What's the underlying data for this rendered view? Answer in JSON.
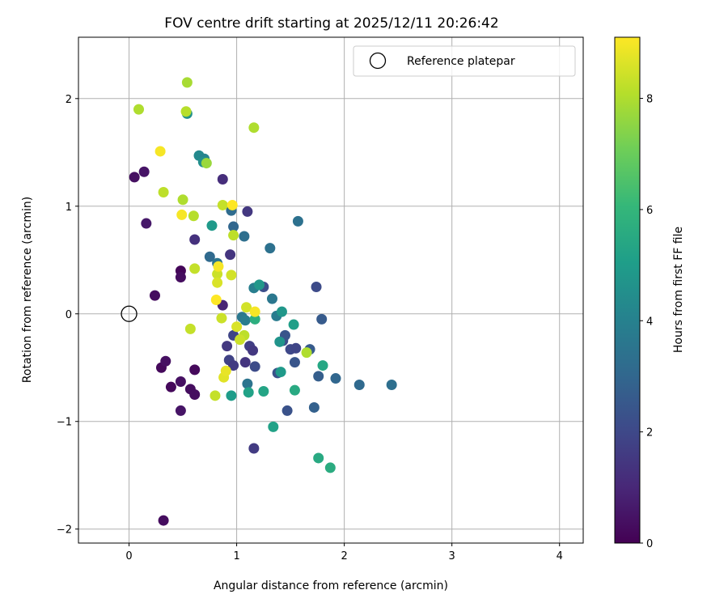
{
  "chart_data": {
    "type": "scatter",
    "title": "FOV centre drift starting at 2025/12/11 20:26:42",
    "xlabel": "Angular distance from reference (arcmin)",
    "ylabel": "Rotation from reference (arcmin)",
    "xlim": [
      -0.47,
      4.22
    ],
    "ylim": [
      -2.13,
      2.57
    ],
    "x_ticks": [
      0,
      1,
      2,
      3,
      4
    ],
    "x_tick_labels": [
      "0",
      "1",
      "2",
      "3",
      "4"
    ],
    "y_ticks": [
      -2,
      -1,
      0,
      1,
      2
    ],
    "y_tick_labels": [
      "−2",
      "−1",
      "0",
      "1",
      "2"
    ],
    "grid": true,
    "legend": {
      "position": "top-right",
      "entries": [
        "Reference platepar"
      ]
    },
    "reference_point": {
      "x": 0,
      "y": 0,
      "label": "Reference platepar"
    },
    "colorbar": {
      "label": "Hours from first FF file",
      "range": [
        0,
        9.1
      ],
      "ticks": [
        0,
        2,
        4,
        6,
        8
      ],
      "tick_labels": [
        "0",
        "2",
        "4",
        "6",
        "8"
      ],
      "colormap": [
        "#440154",
        "#482878",
        "#3e4989",
        "#31688e",
        "#26828e",
        "#1f9e89",
        "#35b779",
        "#6ece58",
        "#b5de2b",
        "#fde725"
      ]
    },
    "points": [
      {
        "x": 0.05,
        "y": 1.27,
        "h": 0.4
      },
      {
        "x": 0.14,
        "y": 1.32,
        "h": 0.5
      },
      {
        "x": 0.16,
        "y": 0.84,
        "h": 0.6
      },
      {
        "x": 0.24,
        "y": 0.17,
        "h": 0.3
      },
      {
        "x": 0.3,
        "y": -0.5,
        "h": 0.2
      },
      {
        "x": 0.34,
        "y": -0.44,
        "h": 0.4
      },
      {
        "x": 0.39,
        "y": -0.68,
        "h": 0.2
      },
      {
        "x": 0.32,
        "y": -1.92,
        "h": 0.3
      },
      {
        "x": 0.48,
        "y": 0.4,
        "h": 0.1
      },
      {
        "x": 0.48,
        "y": 0.34,
        "h": 0.3
      },
      {
        "x": 0.48,
        "y": -0.63,
        "h": 0.4
      },
      {
        "x": 0.48,
        "y": -0.9,
        "h": 0.5
      },
      {
        "x": 0.57,
        "y": -0.7,
        "h": 0.3
      },
      {
        "x": 0.61,
        "y": -0.52,
        "h": 0.2
      },
      {
        "x": 0.61,
        "y": -0.75,
        "h": 0.3
      },
      {
        "x": 0.61,
        "y": 0.69,
        "h": 1.3
      },
      {
        "x": 0.87,
        "y": 1.25,
        "h": 1.2
      },
      {
        "x": 0.87,
        "y": 0.08,
        "h": 0.9
      },
      {
        "x": 0.91,
        "y": -0.3,
        "h": 1.5
      },
      {
        "x": 0.93,
        "y": -0.43,
        "h": 1.8
      },
      {
        "x": 0.94,
        "y": 0.55,
        "h": 1.4
      },
      {
        "x": 0.97,
        "y": -0.48,
        "h": 1.6
      },
      {
        "x": 0.97,
        "y": -0.2,
        "h": 1.9
      },
      {
        "x": 1.1,
        "y": 0.95,
        "h": 1.5
      },
      {
        "x": 1.08,
        "y": -0.45,
        "h": 1.4
      },
      {
        "x": 1.12,
        "y": -0.3,
        "h": 1.7
      },
      {
        "x": 1.15,
        "y": -0.34,
        "h": 1.5
      },
      {
        "x": 1.17,
        "y": -0.49,
        "h": 2.1
      },
      {
        "x": 1.16,
        "y": -1.25,
        "h": 1.6
      },
      {
        "x": 1.25,
        "y": 0.25,
        "h": 2.2
      },
      {
        "x": 1.38,
        "y": -0.55,
        "h": 2.3
      },
      {
        "x": 1.43,
        "y": -0.25,
        "h": 2.1
      },
      {
        "x": 1.45,
        "y": -0.2,
        "h": 2.4
      },
      {
        "x": 1.47,
        "y": -0.9,
        "h": 2.3
      },
      {
        "x": 1.5,
        "y": -0.33,
        "h": 2.0
      },
      {
        "x": 1.54,
        "y": -0.45,
        "h": 2.4
      },
      {
        "x": 1.55,
        "y": -0.32,
        "h": 1.9
      },
      {
        "x": 1.68,
        "y": -0.33,
        "h": 2.6
      },
      {
        "x": 1.74,
        "y": 0.25,
        "h": 2.1
      },
      {
        "x": 1.76,
        "y": -0.58,
        "h": 2.7
      },
      {
        "x": 1.79,
        "y": -0.05,
        "h": 2.6
      },
      {
        "x": 1.72,
        "y": -0.87,
        "h": 2.8
      },
      {
        "x": 1.92,
        "y": -0.6,
        "h": 3.0
      },
      {
        "x": 2.14,
        "y": -0.66,
        "h": 3.1
      },
      {
        "x": 2.44,
        "y": -0.66,
        "h": 3.3
      },
      {
        "x": 0.95,
        "y": 0.96,
        "h": 3.2
      },
      {
        "x": 0.97,
        "y": 0.81,
        "h": 3.0
      },
      {
        "x": 1.07,
        "y": 0.72,
        "h": 3.3
      },
      {
        "x": 0.75,
        "y": 0.53,
        "h": 3.1
      },
      {
        "x": 0.82,
        "y": 0.47,
        "h": 3.5
      },
      {
        "x": 1.31,
        "y": 0.61,
        "h": 3.4
      },
      {
        "x": 1.57,
        "y": 0.86,
        "h": 3.4
      },
      {
        "x": 1.16,
        "y": 0.24,
        "h": 3.9
      },
      {
        "x": 1.33,
        "y": 0.14,
        "h": 3.6
      },
      {
        "x": 1.05,
        "y": -0.03,
        "h": 3.6
      },
      {
        "x": 1.08,
        "y": -0.06,
        "h": 3.8
      },
      {
        "x": 1.37,
        "y": -0.02,
        "h": 3.8
      },
      {
        "x": 1.1,
        "y": -0.65,
        "h": 3.5
      },
      {
        "x": 0.65,
        "y": 1.47,
        "h": 4.3
      },
      {
        "x": 0.7,
        "y": 1.44,
        "h": 4.1
      },
      {
        "x": 0.69,
        "y": 1.41,
        "h": 4.5
      },
      {
        "x": 0.54,
        "y": 1.86,
        "h": 4.6
      },
      {
        "x": 0.77,
        "y": 0.82,
        "h": 4.9
      },
      {
        "x": 1.21,
        "y": 0.27,
        "h": 4.8
      },
      {
        "x": 1.42,
        "y": 0.02,
        "h": 4.8
      },
      {
        "x": 1.53,
        "y": -0.1,
        "h": 5.1
      },
      {
        "x": 1.4,
        "y": -0.26,
        "h": 4.7
      },
      {
        "x": 1.41,
        "y": -0.54,
        "h": 4.9
      },
      {
        "x": 0.95,
        "y": -0.76,
        "h": 5.0
      },
      {
        "x": 1.11,
        "y": -0.73,
        "h": 5.2
      },
      {
        "x": 1.25,
        "y": -0.72,
        "h": 5.3
      },
      {
        "x": 1.34,
        "y": -1.05,
        "h": 5.2
      },
      {
        "x": 1.54,
        "y": -0.71,
        "h": 5.5
      },
      {
        "x": 1.8,
        "y": -0.48,
        "h": 5.4
      },
      {
        "x": 1.76,
        "y": -1.34,
        "h": 5.5
      },
      {
        "x": 1.87,
        "y": -1.43,
        "h": 5.6
      },
      {
        "x": 1.17,
        "y": -0.05,
        "h": 5.7
      },
      {
        "x": 0.54,
        "y": 2.15,
        "h": 7.9
      },
      {
        "x": 0.09,
        "y": 1.9,
        "h": 8.0
      },
      {
        "x": 0.53,
        "y": 1.88,
        "h": 8.1
      },
      {
        "x": 1.16,
        "y": 1.73,
        "h": 8.0
      },
      {
        "x": 0.72,
        "y": 1.4,
        "h": 7.7
      },
      {
        "x": 0.32,
        "y": 1.13,
        "h": 8.2
      },
      {
        "x": 0.5,
        "y": 1.06,
        "h": 8.0
      },
      {
        "x": 0.87,
        "y": 1.01,
        "h": 8.3
      },
      {
        "x": 0.6,
        "y": 0.91,
        "h": 8.1
      },
      {
        "x": 0.97,
        "y": 0.73,
        "h": 8.2
      },
      {
        "x": 0.61,
        "y": 0.42,
        "h": 8.3
      },
      {
        "x": 0.82,
        "y": 0.37,
        "h": 8.4
      },
      {
        "x": 0.95,
        "y": 0.36,
        "h": 8.5
      },
      {
        "x": 0.82,
        "y": 0.29,
        "h": 8.6
      },
      {
        "x": 0.86,
        "y": -0.04,
        "h": 8.4
      },
      {
        "x": 1.09,
        "y": 0.06,
        "h": 8.5
      },
      {
        "x": 1.07,
        "y": -0.2,
        "h": 8.2
      },
      {
        "x": 1.0,
        "y": -0.12,
        "h": 8.6
      },
      {
        "x": 1.03,
        "y": -0.24,
        "h": 8.4
      },
      {
        "x": 0.57,
        "y": -0.14,
        "h": 8.3
      },
      {
        "x": 0.88,
        "y": -0.59,
        "h": 8.7
      },
      {
        "x": 0.9,
        "y": -0.53,
        "h": 8.8
      },
      {
        "x": 0.8,
        "y": -0.76,
        "h": 8.3
      },
      {
        "x": 1.65,
        "y": -0.36,
        "h": 8.0
      },
      {
        "x": 0.29,
        "y": 1.51,
        "h": 9.0
      },
      {
        "x": 0.49,
        "y": 0.92,
        "h": 9.0
      },
      {
        "x": 0.96,
        "y": 1.01,
        "h": 9.1
      },
      {
        "x": 0.83,
        "y": 0.44,
        "h": 9.0
      },
      {
        "x": 0.81,
        "y": 0.13,
        "h": 9.1
      },
      {
        "x": 1.17,
        "y": 0.02,
        "h": 9.0
      }
    ]
  }
}
